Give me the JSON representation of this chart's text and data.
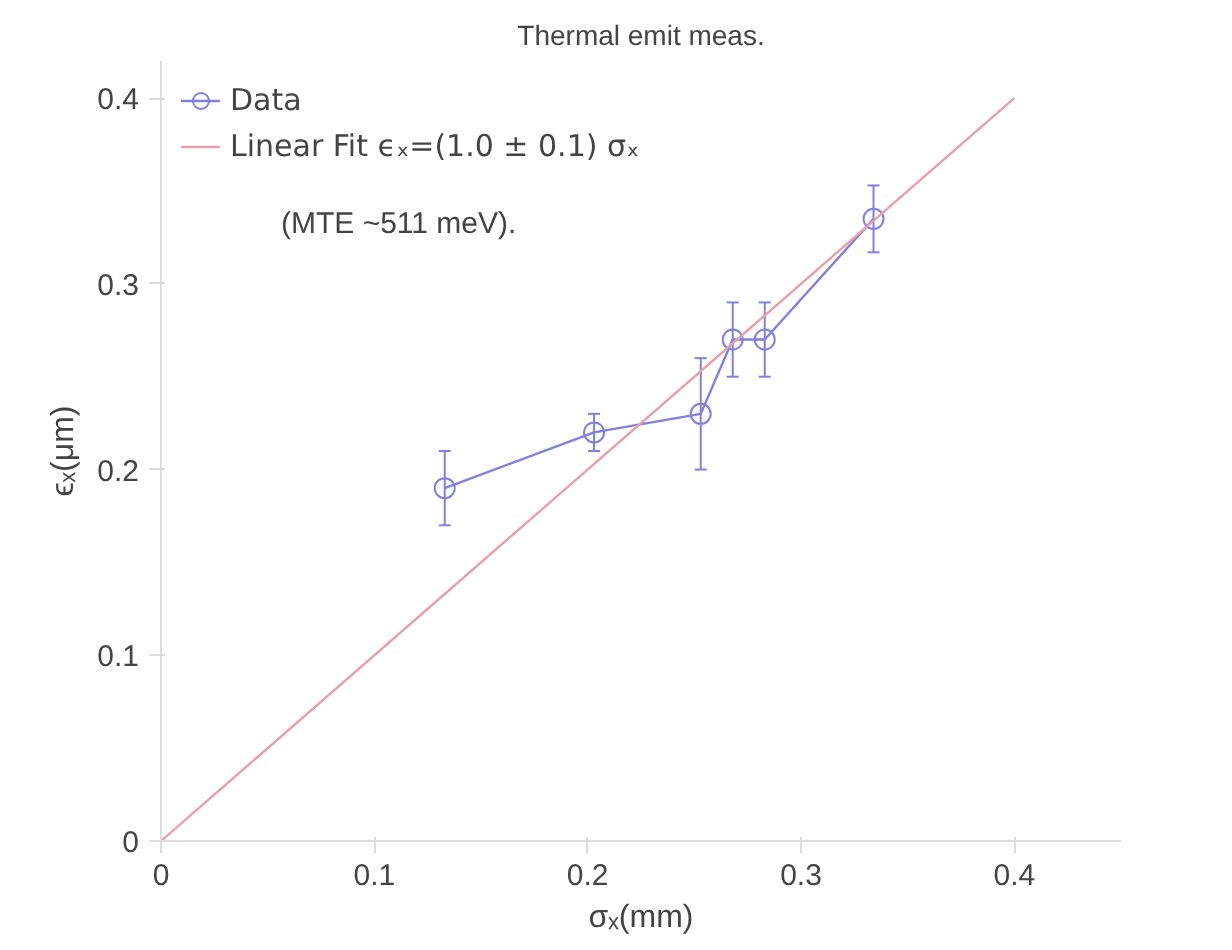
{
  "chart_data": {
    "type": "line",
    "title": "Thermal emit meas.",
    "xlabel": "σₓ(mm)",
    "ylabel": "ϵₓ(μm)",
    "xlim": [
      0,
      0.45
    ],
    "ylim": [
      0,
      0.42
    ],
    "xticks": [
      0,
      0.1,
      0.2,
      0.3,
      0.4
    ],
    "yticks": [
      0,
      0.1,
      0.2,
      0.3,
      0.4
    ],
    "series": [
      {
        "name": "Data",
        "marker": "circle",
        "color": "#8080e0",
        "x": [
          0.133,
          0.203,
          0.253,
          0.268,
          0.283,
          0.334
        ],
        "values": [
          0.19,
          0.22,
          0.23,
          0.27,
          0.27,
          0.335
        ],
        "errors": [
          0.02,
          0.01,
          0.03,
          0.02,
          0.02,
          0.018
        ]
      },
      {
        "name": "Linear Fit ϵₓ=(1.0 ± 0.1) σₓ",
        "type": "line",
        "color": "#e8a0a8",
        "x": [
          0,
          0.4
        ],
        "values": [
          0,
          0.4
        ]
      }
    ],
    "annotations": [
      "(MTE ~511 meV)."
    ],
    "legend": "top left",
    "grid": false
  }
}
